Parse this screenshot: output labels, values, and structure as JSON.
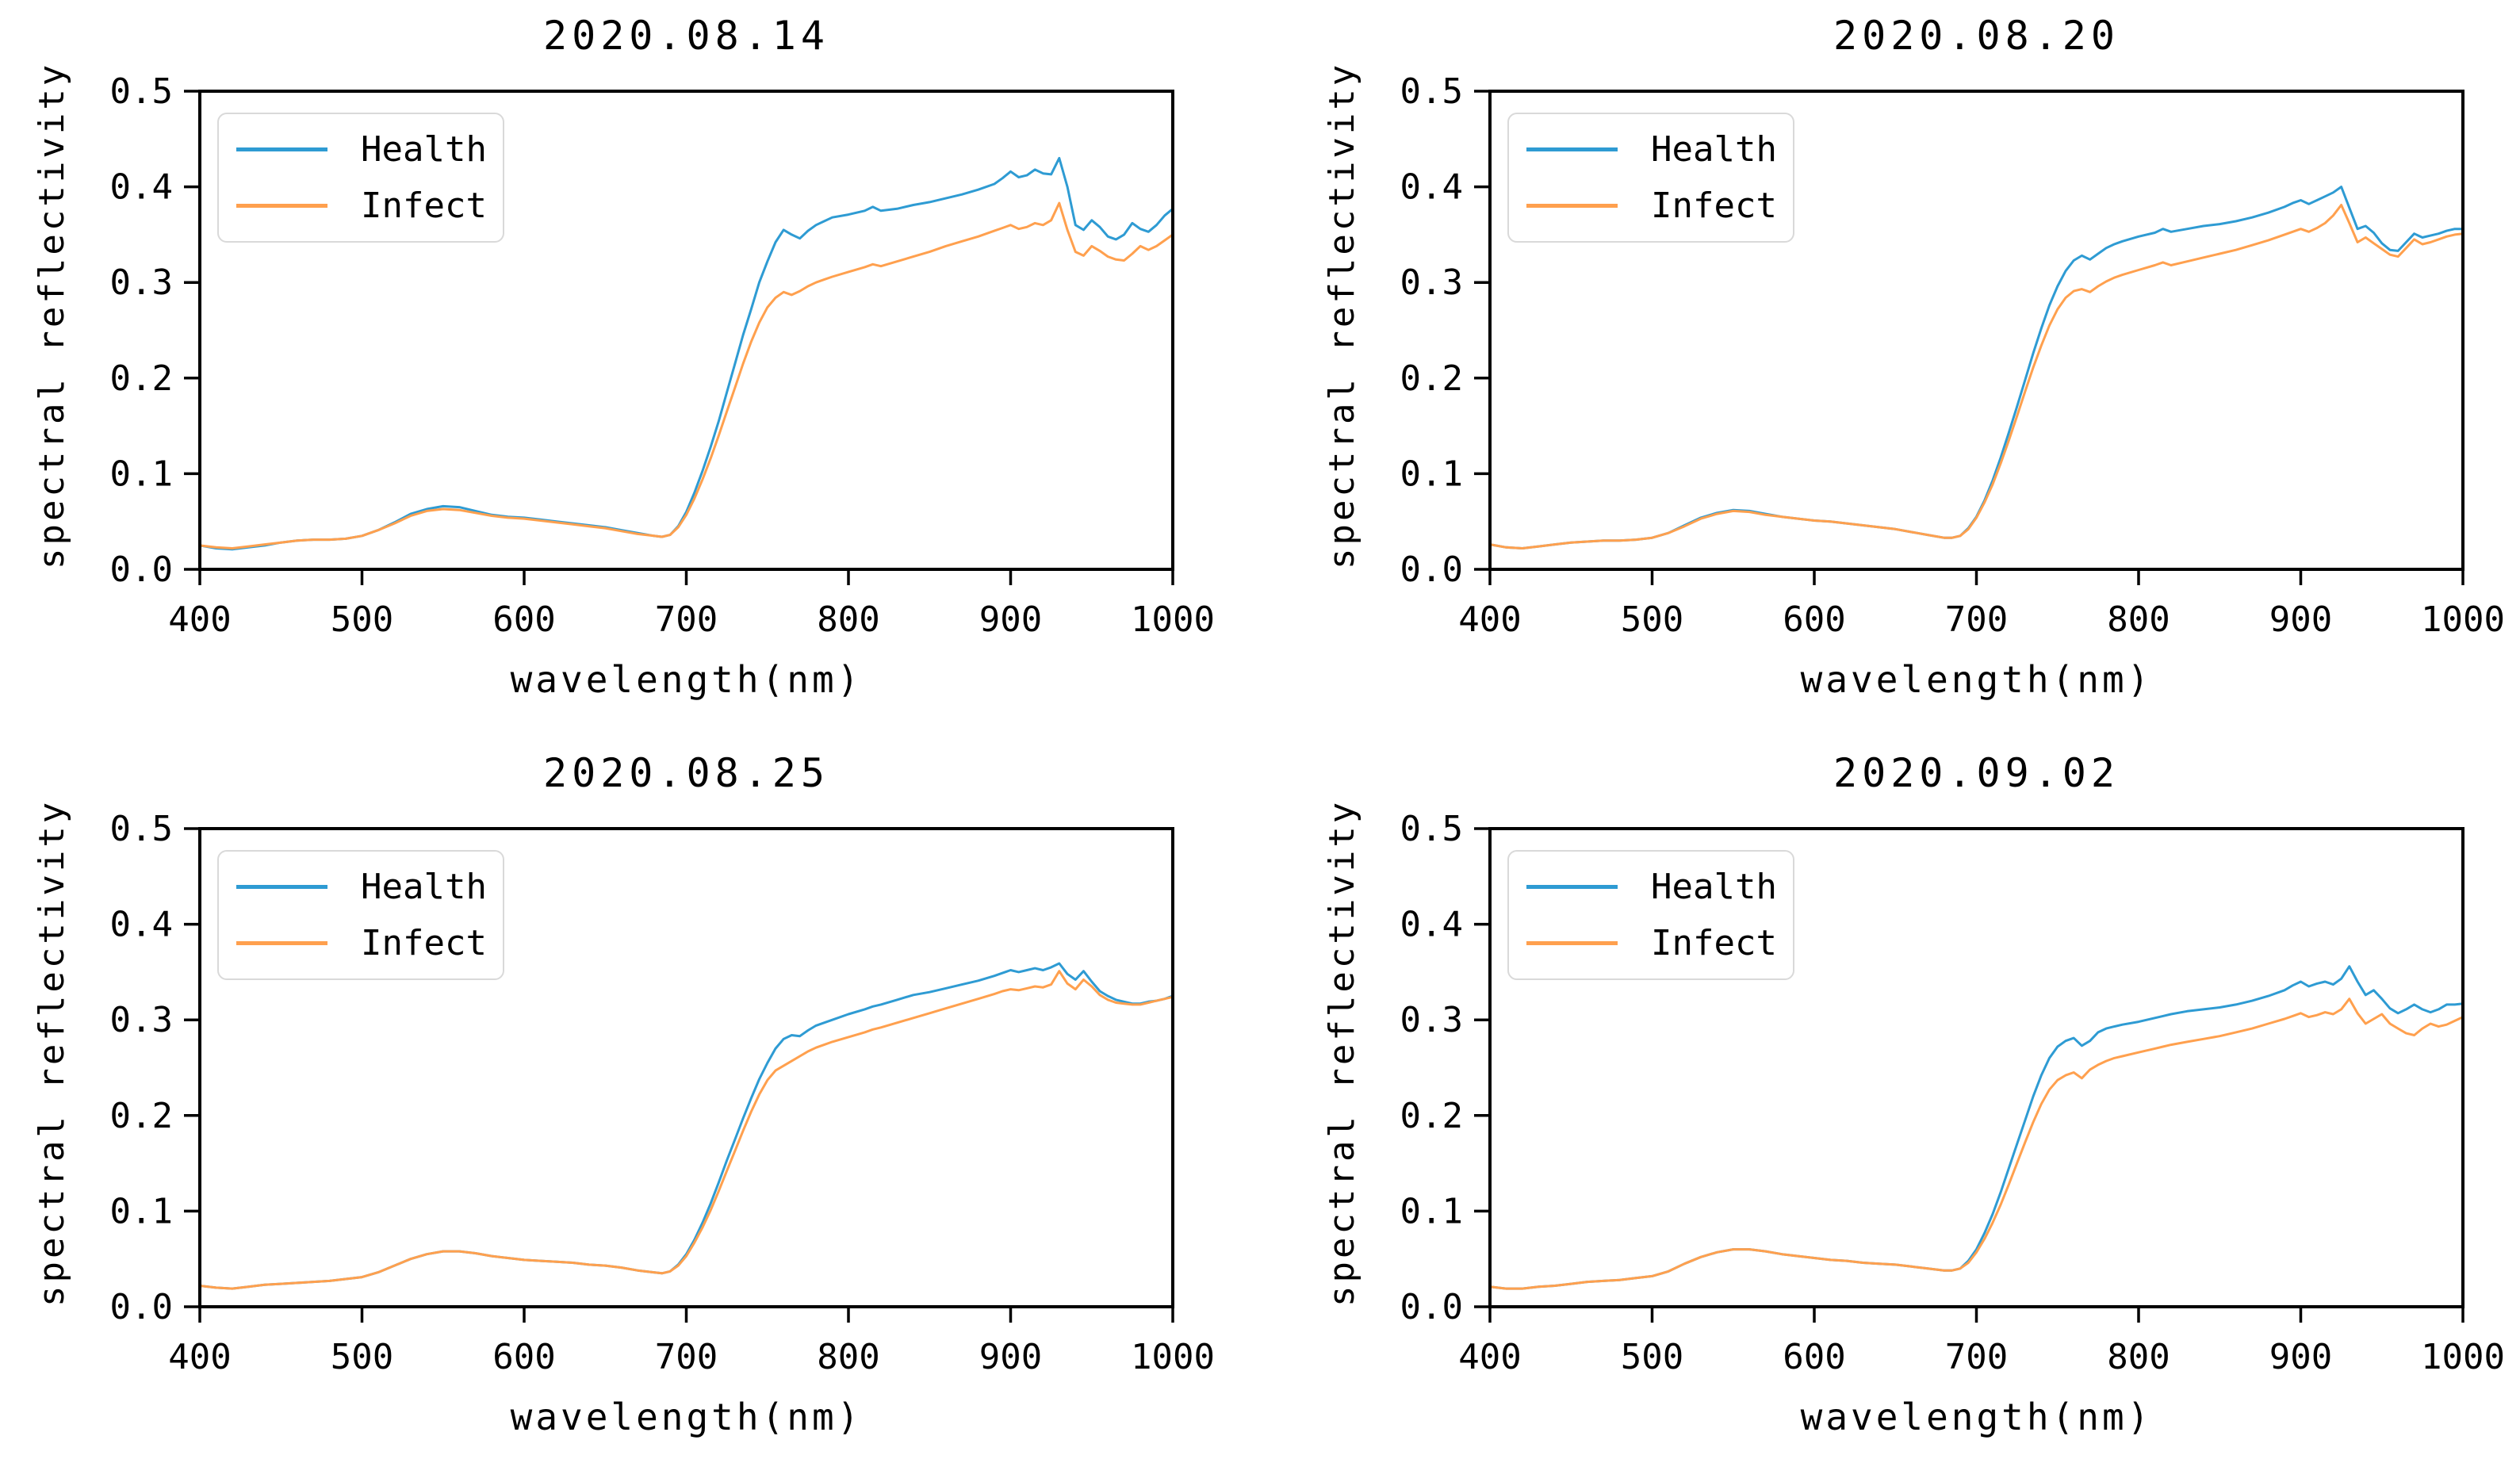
{
  "page": {
    "background": "#ffffff"
  },
  "colors": {
    "health_line": "#2e9bd3",
    "infect_line": "#ffa04e",
    "axis": "#000000",
    "legend_border": "#d9d9d9"
  },
  "wavelengths_nm": [
    400,
    410,
    420,
    430,
    440,
    450,
    460,
    470,
    480,
    490,
    500,
    510,
    520,
    530,
    540,
    550,
    560,
    570,
    580,
    590,
    600,
    610,
    620,
    630,
    640,
    650,
    660,
    670,
    680,
    685,
    690,
    695,
    700,
    705,
    710,
    715,
    720,
    725,
    730,
    735,
    740,
    745,
    750,
    755,
    760,
    765,
    770,
    775,
    780,
    785,
    790,
    800,
    810,
    815,
    820,
    830,
    840,
    850,
    860,
    870,
    880,
    890,
    895,
    900,
    905,
    910,
    915,
    920,
    925,
    930,
    935,
    940,
    945,
    950,
    955,
    960,
    965,
    970,
    975,
    980,
    985,
    990,
    995,
    1000
  ],
  "chart_data": [
    {
      "type": "line",
      "title": "2020.08.14",
      "xlabel": "wavelength(nm)",
      "ylabel": "spectral reflectivity",
      "xlim": [
        400,
        1000
      ],
      "ylim": [
        0,
        0.5
      ],
      "xticks": [
        "400",
        "500",
        "600",
        "700",
        "800",
        "900",
        "1000"
      ],
      "yticks": [
        "0.0",
        "0.1",
        "0.2",
        "0.3",
        "0.4",
        "0.5"
      ],
      "grid": false,
      "legend_position": "upper left",
      "x_note": "shared wavelengths_nm",
      "series": [
        {
          "name": "Health",
          "color": "#2e9bd3",
          "values": [
            0.025,
            0.022,
            0.021,
            0.023,
            0.025,
            0.028,
            0.03,
            0.031,
            0.031,
            0.032,
            0.035,
            0.041,
            0.049,
            0.058,
            0.063,
            0.066,
            0.065,
            0.061,
            0.057,
            0.055,
            0.054,
            0.052,
            0.05,
            0.048,
            0.046,
            0.044,
            0.041,
            0.038,
            0.035,
            0.034,
            0.036,
            0.045,
            0.06,
            0.08,
            0.103,
            0.128,
            0.155,
            0.185,
            0.215,
            0.245,
            0.272,
            0.3,
            0.322,
            0.342,
            0.355,
            0.35,
            0.346,
            0.354,
            0.36,
            0.364,
            0.368,
            0.371,
            0.375,
            0.379,
            0.375,
            0.377,
            0.381,
            0.384,
            0.388,
            0.392,
            0.397,
            0.403,
            0.409,
            0.416,
            0.41,
            0.412,
            0.418,
            0.414,
            0.413,
            0.43,
            0.4,
            0.36,
            0.355,
            0.365,
            0.358,
            0.348,
            0.345,
            0.35,
            0.362,
            0.356,
            0.353,
            0.36,
            0.37,
            0.377
          ]
        },
        {
          "name": "Infect",
          "color": "#ffa04e",
          "values": [
            0.025,
            0.023,
            0.022,
            0.024,
            0.026,
            0.028,
            0.03,
            0.031,
            0.031,
            0.032,
            0.035,
            0.041,
            0.048,
            0.056,
            0.061,
            0.063,
            0.062,
            0.059,
            0.056,
            0.054,
            0.053,
            0.051,
            0.049,
            0.047,
            0.045,
            0.043,
            0.04,
            0.037,
            0.035,
            0.034,
            0.036,
            0.044,
            0.057,
            0.074,
            0.094,
            0.116,
            0.14,
            0.165,
            0.19,
            0.215,
            0.238,
            0.258,
            0.274,
            0.284,
            0.29,
            0.287,
            0.291,
            0.296,
            0.3,
            0.303,
            0.306,
            0.311,
            0.316,
            0.319,
            0.317,
            0.322,
            0.327,
            0.332,
            0.338,
            0.343,
            0.348,
            0.354,
            0.357,
            0.36,
            0.356,
            0.358,
            0.362,
            0.36,
            0.365,
            0.383,
            0.355,
            0.332,
            0.328,
            0.338,
            0.333,
            0.327,
            0.324,
            0.323,
            0.33,
            0.338,
            0.334,
            0.338,
            0.344,
            0.35
          ]
        }
      ]
    },
    {
      "type": "line",
      "title": "2020.08.20",
      "xlabel": "wavelength(nm)",
      "ylabel": "spectral reflectivity",
      "xlim": [
        400,
        1000
      ],
      "ylim": [
        0,
        0.5
      ],
      "xticks": [
        "400",
        "500",
        "600",
        "700",
        "800",
        "900",
        "1000"
      ],
      "yticks": [
        "0.0",
        "0.1",
        "0.2",
        "0.3",
        "0.4",
        "0.5"
      ],
      "grid": false,
      "legend_position": "upper left",
      "x_note": "shared wavelengths_nm",
      "series": [
        {
          "name": "Health",
          "color": "#2e9bd3",
          "values": [
            0.026,
            0.023,
            0.022,
            0.024,
            0.026,
            0.028,
            0.029,
            0.03,
            0.03,
            0.031,
            0.033,
            0.038,
            0.046,
            0.054,
            0.059,
            0.062,
            0.061,
            0.058,
            0.055,
            0.053,
            0.051,
            0.05,
            0.048,
            0.046,
            0.044,
            0.042,
            0.039,
            0.036,
            0.033,
            0.033,
            0.035,
            0.043,
            0.055,
            0.072,
            0.093,
            0.117,
            0.143,
            0.17,
            0.198,
            0.226,
            0.252,
            0.276,
            0.296,
            0.312,
            0.323,
            0.328,
            0.324,
            0.33,
            0.336,
            0.34,
            0.343,
            0.348,
            0.352,
            0.356,
            0.353,
            0.356,
            0.359,
            0.361,
            0.364,
            0.368,
            0.373,
            0.379,
            0.383,
            0.386,
            0.382,
            0.386,
            0.39,
            0.394,
            0.4,
            0.378,
            0.356,
            0.359,
            0.352,
            0.341,
            0.334,
            0.333,
            0.342,
            0.351,
            0.347,
            0.349,
            0.351,
            0.354,
            0.356,
            0.356
          ]
        },
        {
          "name": "Infect",
          "color": "#ffa04e",
          "values": [
            0.026,
            0.023,
            0.022,
            0.024,
            0.026,
            0.028,
            0.029,
            0.03,
            0.03,
            0.031,
            0.033,
            0.038,
            0.045,
            0.053,
            0.058,
            0.061,
            0.06,
            0.057,
            0.055,
            0.053,
            0.051,
            0.05,
            0.048,
            0.046,
            0.044,
            0.042,
            0.039,
            0.036,
            0.033,
            0.033,
            0.035,
            0.042,
            0.054,
            0.07,
            0.089,
            0.111,
            0.135,
            0.16,
            0.186,
            0.211,
            0.234,
            0.255,
            0.272,
            0.284,
            0.291,
            0.293,
            0.29,
            0.296,
            0.301,
            0.305,
            0.308,
            0.313,
            0.318,
            0.321,
            0.318,
            0.322,
            0.326,
            0.33,
            0.334,
            0.339,
            0.344,
            0.35,
            0.353,
            0.356,
            0.353,
            0.357,
            0.362,
            0.37,
            0.381,
            0.362,
            0.342,
            0.347,
            0.341,
            0.335,
            0.329,
            0.327,
            0.336,
            0.345,
            0.34,
            0.342,
            0.345,
            0.348,
            0.35,
            0.351
          ]
        }
      ]
    },
    {
      "type": "line",
      "title": "2020.08.25",
      "xlabel": "wavelength(nm)",
      "ylabel": "spectral reflectivity",
      "xlim": [
        400,
        1000
      ],
      "ylim": [
        0,
        0.5
      ],
      "xticks": [
        "400",
        "500",
        "600",
        "700",
        "800",
        "900",
        "1000"
      ],
      "yticks": [
        "0.0",
        "0.1",
        "0.2",
        "0.3",
        "0.4",
        "0.5"
      ],
      "grid": false,
      "legend_position": "upper left",
      "x_note": "shared wavelengths_nm",
      "series": [
        {
          "name": "Health",
          "color": "#2e9bd3",
          "values": [
            0.022,
            0.02,
            0.019,
            0.021,
            0.023,
            0.024,
            0.025,
            0.026,
            0.027,
            0.029,
            0.031,
            0.036,
            0.043,
            0.05,
            0.055,
            0.058,
            0.058,
            0.056,
            0.053,
            0.051,
            0.049,
            0.048,
            0.047,
            0.046,
            0.044,
            0.043,
            0.041,
            0.038,
            0.036,
            0.035,
            0.037,
            0.044,
            0.055,
            0.07,
            0.088,
            0.108,
            0.13,
            0.153,
            0.175,
            0.197,
            0.218,
            0.238,
            0.255,
            0.27,
            0.28,
            0.284,
            0.283,
            0.289,
            0.294,
            0.297,
            0.3,
            0.306,
            0.311,
            0.314,
            0.316,
            0.321,
            0.326,
            0.329,
            0.333,
            0.337,
            0.341,
            0.346,
            0.349,
            0.352,
            0.35,
            0.352,
            0.354,
            0.352,
            0.355,
            0.359,
            0.348,
            0.342,
            0.351,
            0.34,
            0.33,
            0.325,
            0.321,
            0.319,
            0.317,
            0.317,
            0.319,
            0.32,
            0.322,
            0.325
          ]
        },
        {
          "name": "Infect",
          "color": "#ffa04e",
          "values": [
            0.022,
            0.02,
            0.019,
            0.021,
            0.023,
            0.024,
            0.025,
            0.026,
            0.027,
            0.029,
            0.031,
            0.036,
            0.043,
            0.05,
            0.055,
            0.058,
            0.058,
            0.056,
            0.053,
            0.051,
            0.049,
            0.048,
            0.047,
            0.046,
            0.044,
            0.043,
            0.041,
            0.038,
            0.036,
            0.035,
            0.037,
            0.043,
            0.053,
            0.067,
            0.083,
            0.101,
            0.121,
            0.142,
            0.163,
            0.184,
            0.204,
            0.222,
            0.237,
            0.247,
            0.252,
            0.257,
            0.262,
            0.267,
            0.271,
            0.274,
            0.277,
            0.282,
            0.287,
            0.29,
            0.292,
            0.297,
            0.302,
            0.307,
            0.312,
            0.317,
            0.322,
            0.327,
            0.33,
            0.332,
            0.331,
            0.333,
            0.335,
            0.334,
            0.337,
            0.351,
            0.338,
            0.332,
            0.342,
            0.335,
            0.326,
            0.321,
            0.318,
            0.317,
            0.316,
            0.316,
            0.318,
            0.32,
            0.322,
            0.324
          ]
        }
      ]
    },
    {
      "type": "line",
      "title": "2020.09.02",
      "xlabel": "wavelength(nm)",
      "ylabel": "spectral reflectivity",
      "xlim": [
        400,
        1000
      ],
      "ylim": [
        0,
        0.5
      ],
      "xticks": [
        "400",
        "500",
        "600",
        "700",
        "800",
        "900",
        "1000"
      ],
      "yticks": [
        "0.0",
        "0.1",
        "0.2",
        "0.3",
        "0.4",
        "0.5"
      ],
      "grid": false,
      "legend_position": "upper left",
      "x_note": "shared wavelengths_nm",
      "series": [
        {
          "name": "Health",
          "color": "#2e9bd3",
          "values": [
            0.021,
            0.019,
            0.019,
            0.021,
            0.022,
            0.024,
            0.026,
            0.027,
            0.028,
            0.03,
            0.032,
            0.037,
            0.045,
            0.052,
            0.057,
            0.06,
            0.06,
            0.058,
            0.055,
            0.053,
            0.051,
            0.049,
            0.048,
            0.046,
            0.045,
            0.044,
            0.042,
            0.04,
            0.038,
            0.038,
            0.04,
            0.048,
            0.06,
            0.077,
            0.097,
            0.12,
            0.145,
            0.17,
            0.195,
            0.22,
            0.242,
            0.26,
            0.272,
            0.278,
            0.281,
            0.273,
            0.278,
            0.287,
            0.291,
            0.293,
            0.295,
            0.298,
            0.302,
            0.304,
            0.306,
            0.309,
            0.311,
            0.313,
            0.316,
            0.32,
            0.325,
            0.331,
            0.336,
            0.34,
            0.335,
            0.338,
            0.34,
            0.337,
            0.343,
            0.356,
            0.34,
            0.326,
            0.331,
            0.322,
            0.312,
            0.307,
            0.311,
            0.316,
            0.311,
            0.308,
            0.311,
            0.316,
            0.316,
            0.317
          ]
        },
        {
          "name": "Infect",
          "color": "#ffa04e",
          "values": [
            0.021,
            0.019,
            0.019,
            0.021,
            0.022,
            0.024,
            0.026,
            0.027,
            0.028,
            0.03,
            0.032,
            0.037,
            0.045,
            0.052,
            0.057,
            0.06,
            0.06,
            0.058,
            0.055,
            0.053,
            0.051,
            0.049,
            0.048,
            0.046,
            0.045,
            0.044,
            0.042,
            0.04,
            0.038,
            0.038,
            0.04,
            0.046,
            0.057,
            0.071,
            0.088,
            0.107,
            0.128,
            0.15,
            0.172,
            0.193,
            0.212,
            0.227,
            0.237,
            0.242,
            0.245,
            0.239,
            0.248,
            0.253,
            0.257,
            0.26,
            0.262,
            0.266,
            0.27,
            0.272,
            0.274,
            0.277,
            0.28,
            0.283,
            0.287,
            0.291,
            0.296,
            0.301,
            0.304,
            0.307,
            0.303,
            0.305,
            0.308,
            0.306,
            0.311,
            0.322,
            0.307,
            0.296,
            0.301,
            0.306,
            0.296,
            0.291,
            0.286,
            0.284,
            0.291,
            0.296,
            0.293,
            0.295,
            0.299,
            0.303
          ]
        }
      ]
    }
  ]
}
